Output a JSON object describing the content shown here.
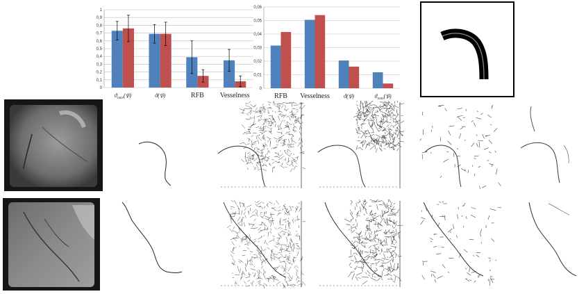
{
  "colors": {
    "series_blue": "#4F81BD",
    "series_red": "#C0504D",
    "grid": "#bfbfbf"
  },
  "chart_data": [
    {
      "type": "bar",
      "categories": [
        "ϑ_{τ_min}(𝔓)",
        "ϑ(𝔓)",
        "RFB",
        "Vesselness"
      ],
      "series": [
        {
          "values": [
            0.73,
            0.69,
            0.39,
            0.35
          ],
          "errors": [
            0.12,
            0.12,
            0.21,
            0.14
          ]
        },
        {
          "values": [
            0.76,
            0.69,
            0.15,
            0.08
          ],
          "errors": [
            0.17,
            0.15,
            0.08,
            0.07
          ]
        }
      ],
      "yticks": [
        "0",
        "0,1",
        "0,2",
        "0,3",
        "0,4",
        "0,5",
        "0,6",
        "0,7",
        "0,8",
        "0,9",
        "1"
      ],
      "ylim": [
        0,
        1
      ],
      "grid": true
    },
    {
      "type": "bar",
      "categories": [
        "RFB",
        "Vesselness",
        "ϑ(𝔓)",
        "ϑ_{τ_min}(𝔓)"
      ],
      "series": [
        {
          "values": [
            0.0315,
            0.0505,
            0.0205,
            0.0118
          ]
        },
        {
          "values": [
            0.0415,
            0.054,
            0.016,
            0.0035
          ]
        }
      ],
      "yticks": [
        "0",
        "0,01",
        "0,02",
        "0,03",
        "0,04",
        "0,05",
        "0,06"
      ],
      "ylim": [
        0,
        0.06
      ],
      "grid": true
    }
  ]
}
